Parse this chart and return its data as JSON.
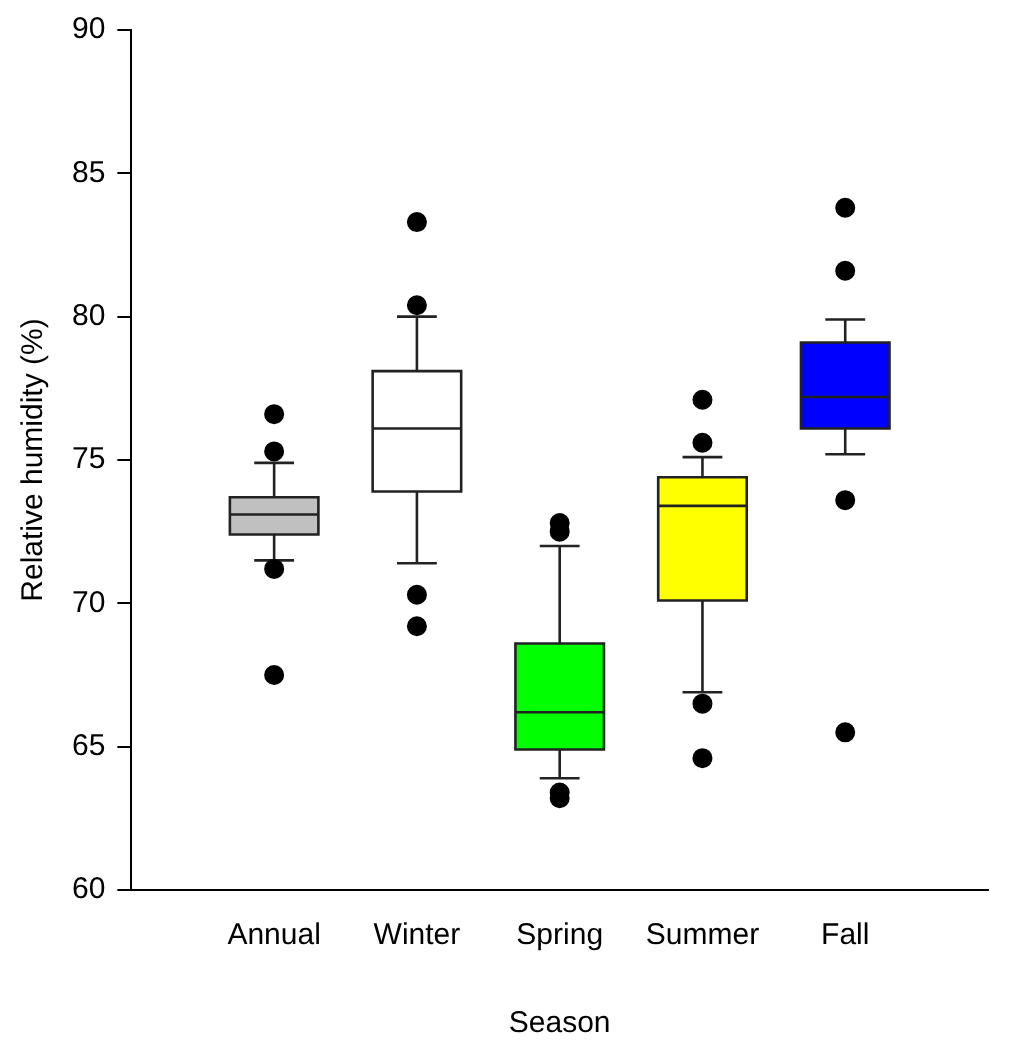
{
  "chart_data": {
    "type": "box",
    "xlabel": "Season",
    "ylabel": "Relative humidity (%)",
    "categories": [
      "Annual",
      "Winter",
      "Spring",
      "Summer",
      "Fall"
    ],
    "colors": [
      "#c0c0c0",
      "#ffffff",
      "#00ff00",
      "#ffff00",
      "#0000ff"
    ],
    "boxes": [
      {
        "low": 71.5,
        "q1": 72.4,
        "median": 73.1,
        "q3": 73.7,
        "high": 74.9,
        "outliers": [
          76.6,
          75.3,
          71.2,
          67.5
        ]
      },
      {
        "low": 71.4,
        "q1": 73.9,
        "median": 76.1,
        "q3": 78.1,
        "high": 80.0,
        "outliers": [
          83.3,
          80.4,
          70.3,
          69.2
        ]
      },
      {
        "low": 63.9,
        "q1": 64.9,
        "median": 66.2,
        "q3": 68.6,
        "high": 72.0,
        "outliers": [
          72.8,
          72.5,
          63.4,
          63.2
        ]
      },
      {
        "low": 66.9,
        "q1": 70.1,
        "median": 73.4,
        "q3": 74.4,
        "high": 75.1,
        "outliers": [
          77.1,
          75.6,
          66.5,
          64.6
        ]
      },
      {
        "low": 75.2,
        "q1": 76.1,
        "median": 77.2,
        "q3": 79.1,
        "high": 79.9,
        "outliers": [
          83.8,
          81.6,
          73.6,
          65.5
        ]
      }
    ],
    "ylim": [
      60,
      90
    ],
    "yticks": [
      60,
      65,
      70,
      75,
      80,
      85,
      90
    ],
    "grid": false,
    "legend": false,
    "marker": "circle"
  }
}
